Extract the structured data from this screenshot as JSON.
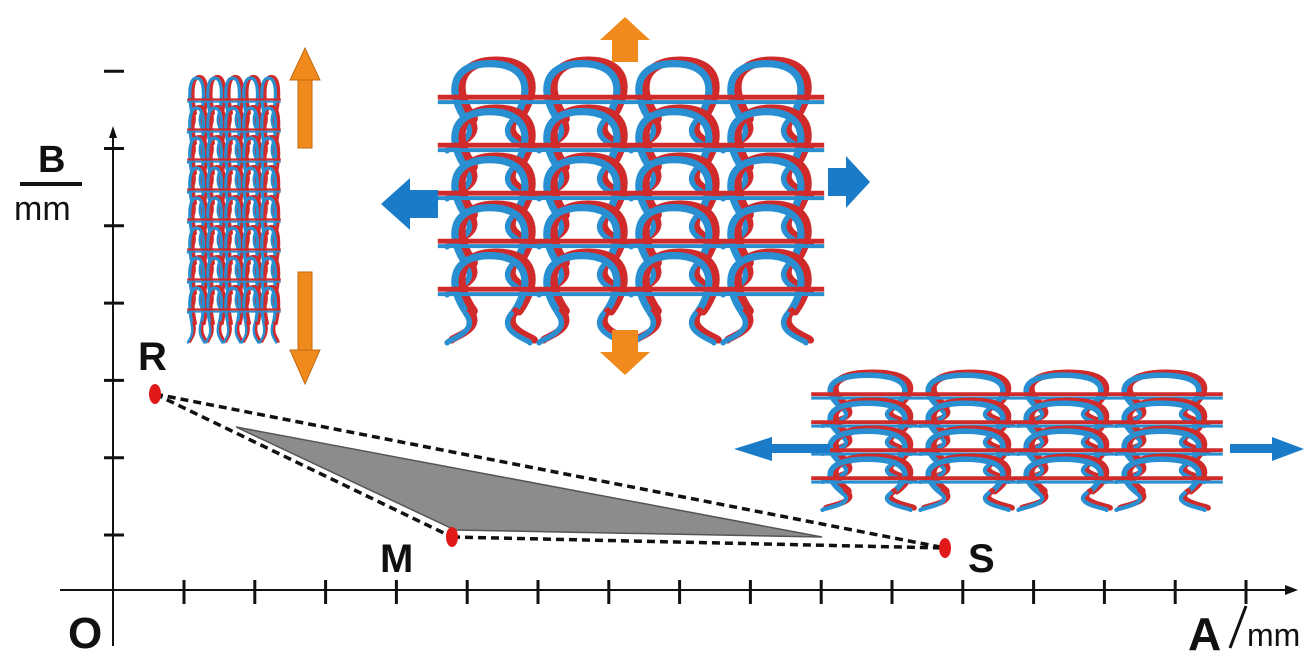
{
  "axes": {
    "origin_label": "O",
    "x_label": "A",
    "x_unit": "mm",
    "y_label_top": "B",
    "y_label_bottom": "mm",
    "x_ticks": 16,
    "y_ticks": 7
  },
  "points": {
    "R": "R",
    "M": "M",
    "S": "S"
  },
  "colors": {
    "red_yarn": "#d02a2a",
    "blue_yarn": "#2a8fd0",
    "orange_arrow": "#f08a1c",
    "blue_arrow": "#1a7cc8",
    "triangle_fill": "#8c8c8c",
    "point_red": "#e01818"
  },
  "icons": [
    "up-arrow-icon",
    "down-arrow-icon",
    "left-arrow-icon",
    "right-arrow-icon"
  ]
}
